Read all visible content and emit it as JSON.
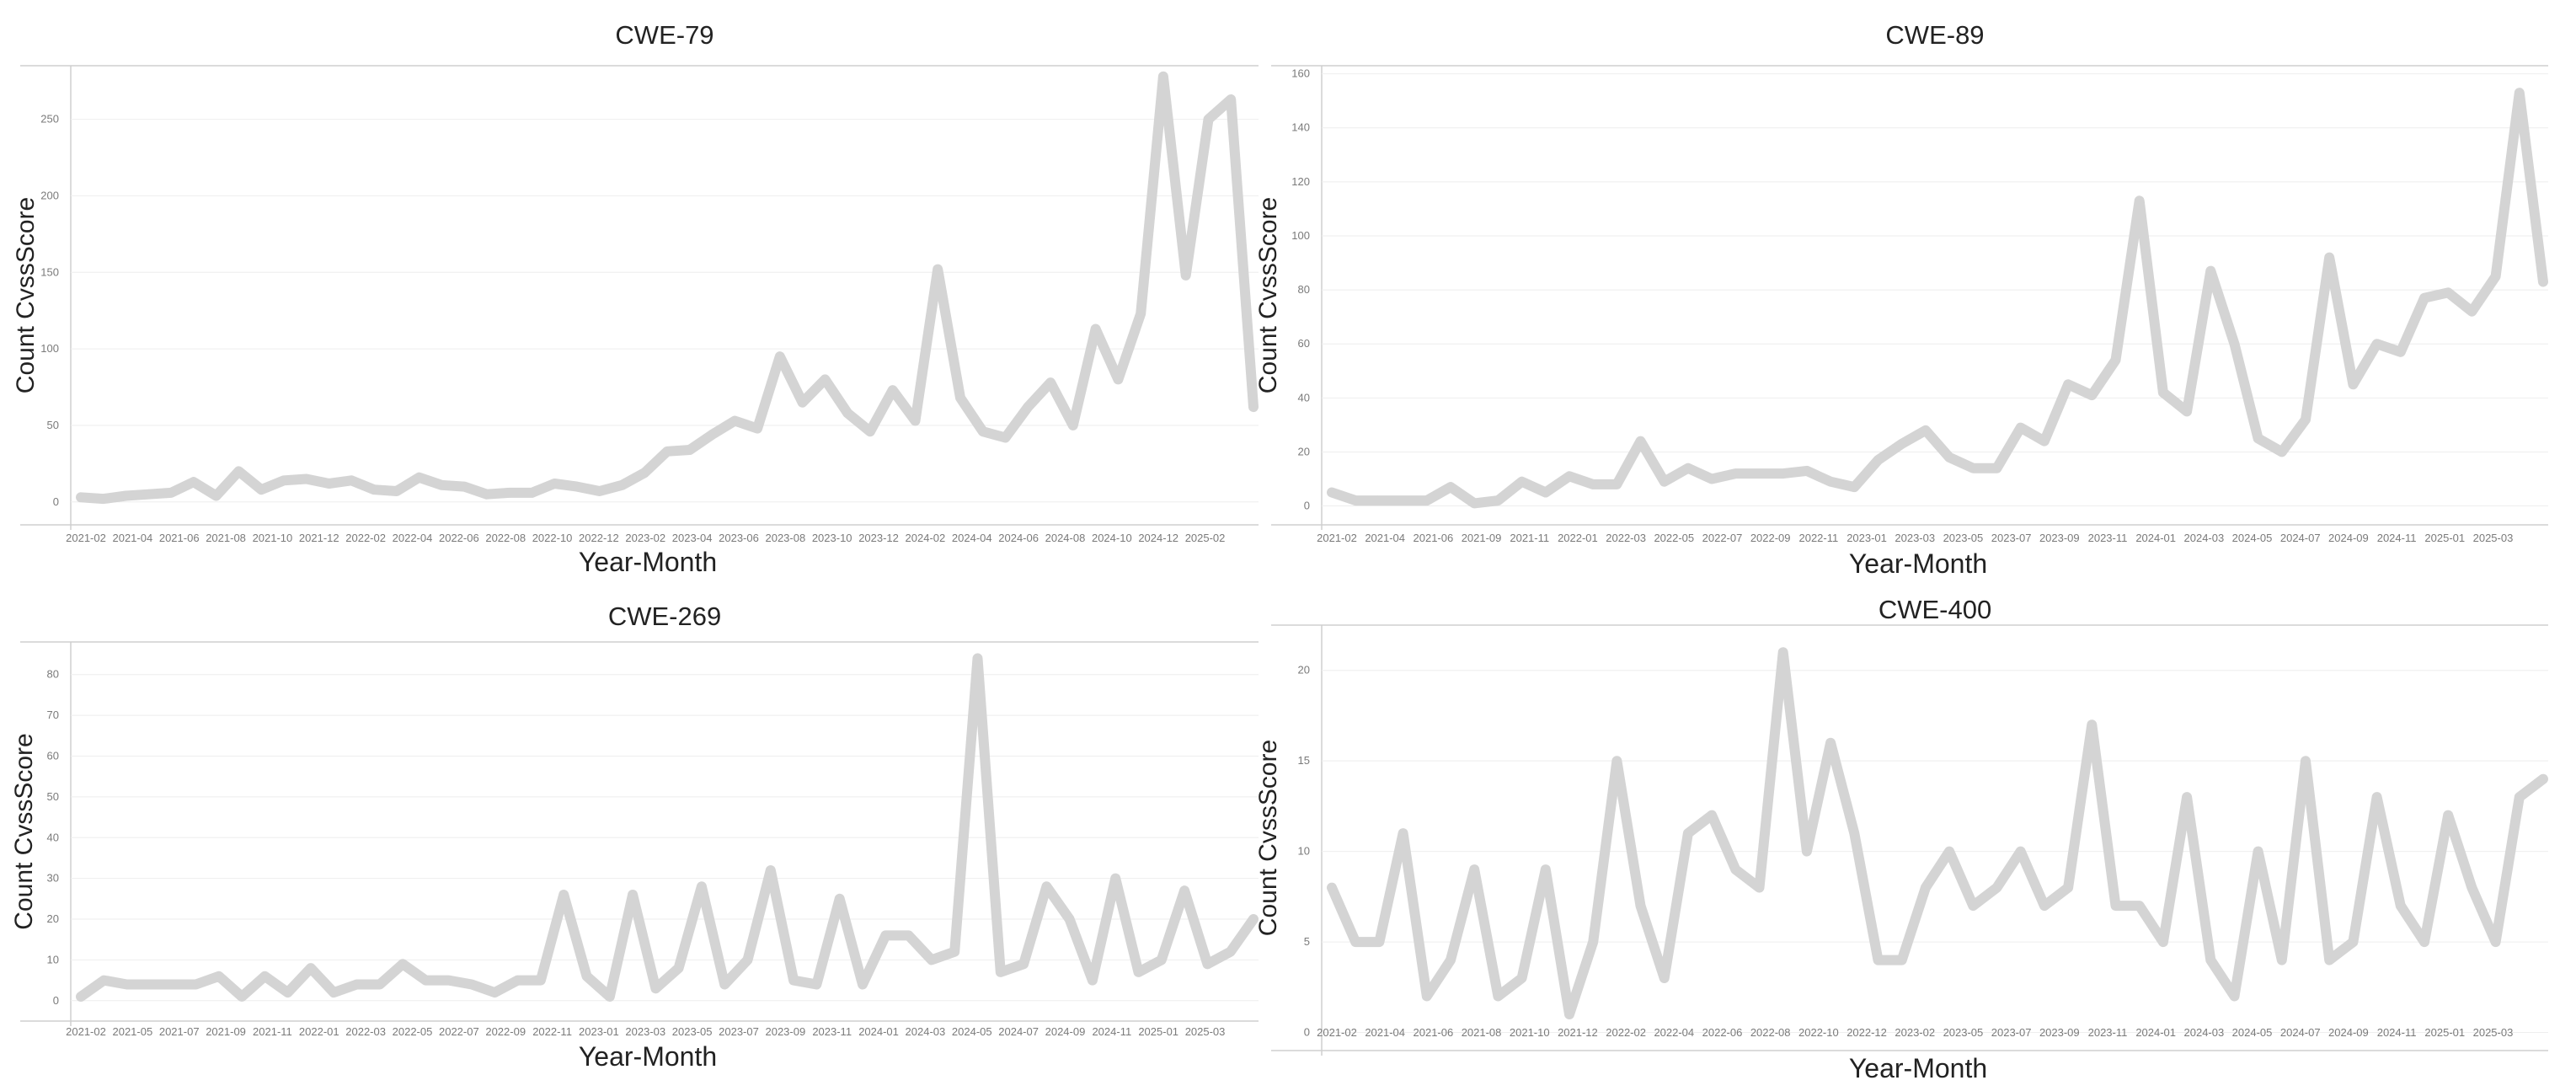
{
  "chart_data": [
    {
      "type": "line",
      "title": "CWE-79",
      "xlabel": "Year-Month",
      "ylabel": "Count CvssScore",
      "ylim": [
        -15,
        285
      ],
      "yticks": [
        0,
        50,
        100,
        150,
        200,
        250
      ],
      "grid": true,
      "color": "#d4d4d4",
      "xtick_labels": [
        "2021-02",
        "2021-04",
        "2021-06",
        "2021-08",
        "2021-10",
        "2021-12",
        "2022-02",
        "2022-04",
        "2022-06",
        "2022-08",
        "2022-10",
        "2022-12",
        "2023-02",
        "2023-04",
        "2023-06",
        "2023-08",
        "2023-10",
        "2023-12",
        "2024-02",
        "2024-04",
        "2024-06",
        "2024-08",
        "2024-10",
        "2024-12",
        "2025-02"
      ],
      "values": [
        3,
        2,
        4,
        5,
        6,
        13,
        4,
        20,
        8,
        14,
        15,
        12,
        14,
        8,
        7,
        16,
        11,
        10,
        5,
        6,
        6,
        12,
        10,
        7,
        11,
        19,
        33,
        34,
        44,
        53,
        48,
        95,
        65,
        80,
        58,
        46,
        73,
        53,
        152,
        68,
        46,
        42,
        62,
        78,
        50,
        113,
        80,
        123,
        278,
        148,
        250,
        263,
        62
      ]
    },
    {
      "type": "line",
      "title": "CWE-89",
      "xlabel": "Year-Month",
      "ylabel": "Count CvssScore",
      "ylim": [
        -7,
        163
      ],
      "yticks": [
        0,
        20,
        40,
        60,
        80,
        100,
        120,
        140,
        160
      ],
      "grid": true,
      "color": "#d4d4d4",
      "xtick_labels": [
        "2021-02",
        "2021-04",
        "2021-06",
        "2021-09",
        "2021-11",
        "2022-01",
        "2022-03",
        "2022-05",
        "2022-07",
        "2022-09",
        "2022-11",
        "2023-01",
        "2023-03",
        "2023-05",
        "2023-07",
        "2023-09",
        "2023-11",
        "2024-01",
        "2024-03",
        "2024-05",
        "2024-07",
        "2024-09",
        "2024-11",
        "2025-01",
        "2025-03"
      ],
      "values": [
        5,
        2,
        2,
        2,
        2,
        7,
        1,
        2,
        9,
        5,
        11,
        8,
        8,
        24,
        9,
        14,
        10,
        12,
        12,
        12,
        13,
        9,
        7,
        17,
        23,
        28,
        18,
        14,
        14,
        29,
        24,
        45,
        41,
        54,
        113,
        42,
        35,
        87,
        60,
        25,
        20,
        32,
        92,
        45,
        60,
        57,
        77,
        79,
        72,
        85,
        153,
        83
      ]
    },
    {
      "type": "line",
      "title": "CWE-269",
      "xlabel": "Year-Month",
      "ylabel": "Count CvssScore",
      "ylim": [
        -5,
        88
      ],
      "yticks": [
        0,
        10,
        20,
        30,
        40,
        50,
        60,
        70,
        80
      ],
      "grid": true,
      "color": "#d4d4d4",
      "xtick_labels": [
        "2021-02",
        "2021-05",
        "2021-07",
        "2021-09",
        "2021-11",
        "2022-01",
        "2022-03",
        "2022-05",
        "2022-07",
        "2022-09",
        "2022-11",
        "2023-01",
        "2023-03",
        "2023-05",
        "2023-07",
        "2023-09",
        "2023-11",
        "2024-01",
        "2024-03",
        "2024-05",
        "2024-07",
        "2024-09",
        "2024-11",
        "2025-01",
        "2025-03"
      ],
      "values": [
        1,
        5,
        4,
        4,
        4,
        4,
        6,
        1,
        6,
        2,
        8,
        2,
        4,
        4,
        9,
        5,
        5,
        4,
        2,
        5,
        5,
        26,
        6,
        1,
        26,
        3,
        8,
        28,
        4,
        10,
        32,
        5,
        4,
        25,
        4,
        16,
        16,
        10,
        12,
        84,
        7,
        9,
        28,
        20,
        5,
        30,
        7,
        10,
        27,
        9,
        12,
        20
      ]
    },
    {
      "type": "line",
      "title": "CWE-400",
      "xlabel": "Year-Month",
      "ylabel": "Count CvssScore",
      "ylim": [
        -1,
        22.5
      ],
      "yticks": [
        0,
        5,
        10,
        15,
        20
      ],
      "grid": true,
      "color": "#d4d4d4",
      "xtick_labels": [
        "2021-02",
        "2021-04",
        "2021-06",
        "2021-08",
        "2021-10",
        "2021-12",
        "2022-02",
        "2022-04",
        "2022-06",
        "2022-08",
        "2022-10",
        "2022-12",
        "2023-02",
        "2023-05",
        "2023-07",
        "2023-09",
        "2023-11",
        "2024-01",
        "2024-03",
        "2024-05",
        "2024-07",
        "2024-09",
        "2024-11",
        "2025-01",
        "2025-03"
      ],
      "values": [
        8,
        5,
        5,
        11,
        2,
        4,
        9,
        2,
        3,
        9,
        1,
        5,
        15,
        7,
        3,
        11,
        12,
        9,
        8,
        21,
        10,
        16,
        11,
        4,
        4,
        8,
        10,
        7,
        8,
        10,
        7,
        8,
        17,
        7,
        7,
        5,
        13,
        4,
        2,
        10,
        4,
        15,
        4,
        5,
        13,
        7,
        5,
        12,
        8,
        5,
        13,
        14
      ]
    }
  ]
}
